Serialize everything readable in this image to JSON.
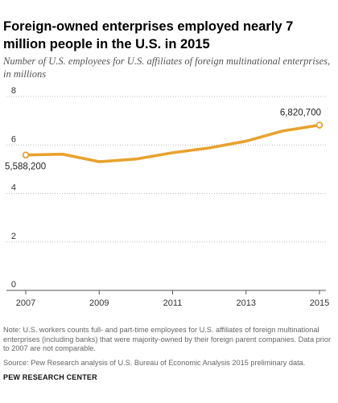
{
  "header": {
    "title": "Foreign-owned  enterprises employed nearly 7 million people in the U.S. in 2015",
    "subtitle": "Number of U.S. employees for U.S. affiliates of foreign multinational enterprises, in millions"
  },
  "footer": {
    "note": "Note: U.S. workers counts full- and part-time employees for U.S. affiliates of foreign multinational enterprises (including banks) that were majority-owned by their foreign parent companies. Data prior to 2007 are not comparable.",
    "source": "Source:  Pew Research analysis of U.S. Bureau of Economic Analysis 2015 preliminary data.",
    "brand": "PEW RESEARCH CENTER"
  },
  "chart_data": {
    "type": "line",
    "title": "Foreign-owned  enterprises employed nearly 7 million people in the U.S. in 2015",
    "subtitle": "Number of U.S. employees for U.S. affiliates of foreign multinational enterprises, in millions",
    "x": [
      2007,
      2008,
      2009,
      2010,
      2011,
      2012,
      2013,
      2014,
      2015
    ],
    "series": [
      {
        "values": [
          5.5882,
          5.62,
          5.31,
          5.42,
          5.68,
          5.88,
          6.16,
          6.58,
          6.8207
        ]
      }
    ],
    "x_ticks": [
      2007,
      2009,
      2011,
      2013,
      2015
    ],
    "y_ticks": [
      0,
      2,
      4,
      6,
      8
    ],
    "ylim": [
      0,
      8
    ],
    "xlim": [
      2007,
      2015
    ],
    "grid": "horizontal dotted",
    "line_color": "#E8A22E",
    "annotations": [
      {
        "x": 2007,
        "text": "5,588,200"
      },
      {
        "x": 2015,
        "text": "6,820,700"
      }
    ]
  }
}
